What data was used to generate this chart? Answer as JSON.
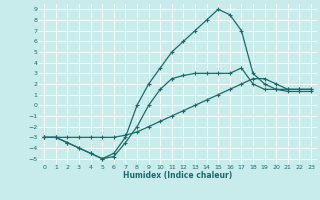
{
  "title": "",
  "xlabel": "Humidex (Indice chaleur)",
  "bg_color": "#c8ecec",
  "grid_color": "#ffffff",
  "line_color": "#1a6b6b",
  "xlim": [
    -0.5,
    23.5
  ],
  "ylim": [
    -5.5,
    9.5
  ],
  "xticks": [
    0,
    1,
    2,
    3,
    4,
    5,
    6,
    7,
    8,
    9,
    10,
    11,
    12,
    13,
    14,
    15,
    16,
    17,
    18,
    19,
    20,
    21,
    22,
    23
  ],
  "yticks": [
    -5,
    -4,
    -3,
    -2,
    -1,
    0,
    1,
    2,
    3,
    4,
    5,
    6,
    7,
    8,
    9
  ],
  "line1_x": [
    0,
    1,
    2,
    3,
    4,
    5,
    6,
    7,
    8,
    9,
    10,
    11,
    12,
    13,
    14,
    15,
    16,
    17,
    18,
    19,
    20,
    21,
    22,
    23
  ],
  "line1_y": [
    -3,
    -3,
    -3.5,
    -4,
    -4.5,
    -5,
    -4.5,
    -3,
    0,
    2,
    3.5,
    5,
    6,
    7,
    8,
    9,
    8.5,
    7,
    3,
    2,
    1.5,
    1.3,
    1.3,
    1.3
  ],
  "line2_x": [
    0,
    1,
    2,
    3,
    4,
    5,
    6,
    7,
    8,
    9,
    10,
    11,
    12,
    13,
    14,
    15,
    16,
    17,
    18,
    19,
    20,
    21,
    22,
    23
  ],
  "line2_y": [
    -3,
    -3,
    -3,
    -3,
    -3,
    -3,
    -3,
    -2.8,
    -2.5,
    -2,
    -1.5,
    -1,
    -0.5,
    0,
    0.5,
    1,
    1.5,
    2,
    2.5,
    2.5,
    2,
    1.5,
    1.5,
    1.5
  ],
  "line3_x": [
    0,
    1,
    2,
    3,
    4,
    5,
    6,
    7,
    8,
    9,
    10,
    11,
    12,
    13,
    14,
    15,
    16,
    17,
    18,
    19,
    20,
    21,
    22,
    23
  ],
  "line3_y": [
    -3,
    -3,
    -3.5,
    -4,
    -4.5,
    -5,
    -4.8,
    -3.5,
    -2,
    0,
    1.5,
    2.5,
    2.8,
    3,
    3,
    3,
    3,
    3.5,
    2,
    1.5,
    1.5,
    1.5,
    1.5,
    1.5
  ]
}
